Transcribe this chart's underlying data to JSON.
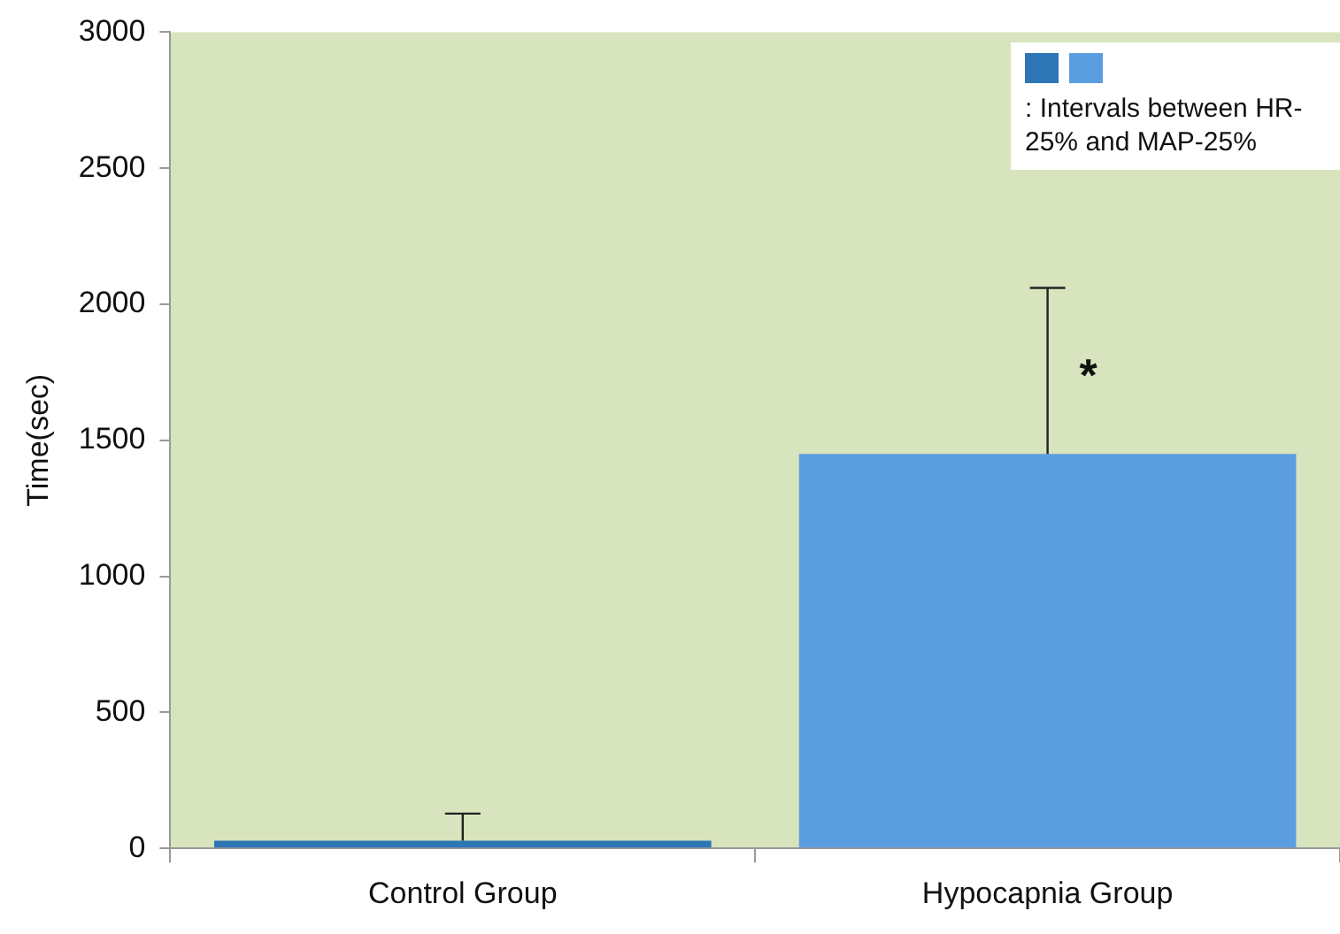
{
  "chart_data": {
    "type": "bar",
    "ylabel": "Time(sec)",
    "categories": [
      "Control Group",
      "Hypocapnia Group"
    ],
    "series": [
      {
        "name": ": Intervals between HR-25% and MAP-25%",
        "colors": [
          "#2e75b6",
          "#5b9ee0"
        ],
        "values": [
          28,
          1450
        ],
        "errors": [
          100,
          610
        ]
      }
    ],
    "ylim": [
      0,
      3000
    ],
    "yticks": [
      0,
      500,
      1000,
      1500,
      2000,
      2500,
      3000
    ],
    "grid": false,
    "legend": "top right",
    "annotations": [
      {
        "text": "*",
        "x": "Hypocapnia Group",
        "y": 1780
      }
    ]
  }
}
